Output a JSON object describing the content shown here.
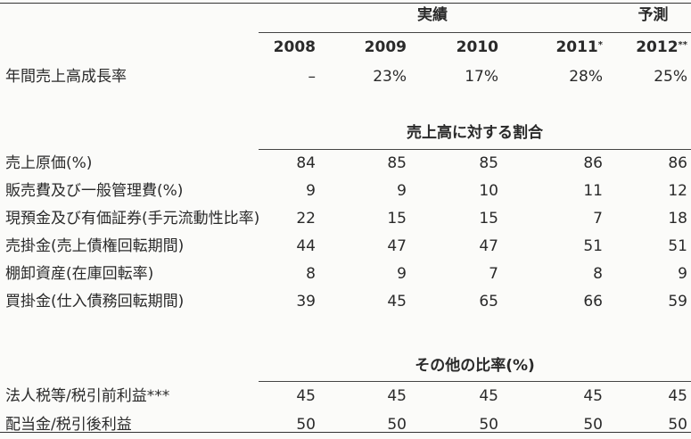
{
  "header": {
    "group_actual": "実績",
    "group_forecast": "予測",
    "years": [
      "2008",
      "2009",
      "2010",
      "2011",
      "2012"
    ],
    "year_marks": [
      "",
      "",
      "",
      "*",
      "**"
    ]
  },
  "growth": {
    "label": "年間売上高成長率",
    "values": [
      "–",
      "23%",
      "17%",
      "28%",
      "25%"
    ]
  },
  "section_sales_ratio": {
    "title": "売上高に対する割合",
    "rows": [
      {
        "label": "売上原価(%)",
        "values": [
          "84",
          "85",
          "85",
          "86",
          "86"
        ]
      },
      {
        "label": "販売費及び一般管理費(%)",
        "values": [
          "9",
          "9",
          "10",
          "11",
          "12"
        ]
      },
      {
        "label": "現預金及び有価証券(手元流動性比率)",
        "values": [
          "22",
          "15",
          "15",
          "7",
          "18"
        ]
      },
      {
        "label": "売掛金(売上債権回転期間)",
        "values": [
          "44",
          "47",
          "47",
          "51",
          "51"
        ]
      },
      {
        "label": "棚卸資産(在庫回転率)",
        "values": [
          "8",
          "9",
          "7",
          "8",
          "9"
        ]
      },
      {
        "label": "買掛金(仕入債務回転期間)",
        "values": [
          "39",
          "45",
          "65",
          "66",
          "59"
        ]
      }
    ]
  },
  "section_other_ratios": {
    "title": "その他の比率(%)",
    "rows": [
      {
        "label": "法人税等/税引前利益***",
        "values": [
          "45",
          "45",
          "45",
          "45",
          "45"
        ]
      },
      {
        "label": "配当金/税引後利益",
        "values": [
          "50",
          "50",
          "50",
          "50",
          "50"
        ]
      }
    ]
  }
}
